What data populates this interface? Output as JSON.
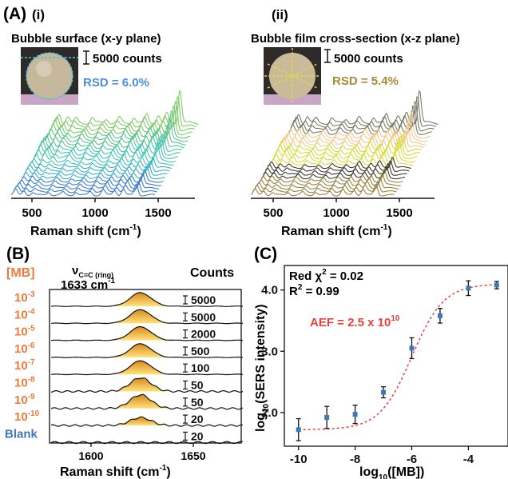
{
  "panel_A": {
    "label": "(A)",
    "left": {
      "sub": "(i)",
      "title": "Bubble surface (x-y plane)",
      "scale": "5000 counts",
      "rsd": "RSD = 6.0%",
      "rsd_color": "#4a90d9",
      "xlabel_main": "Raman shift (cm",
      "xlabel_sup": "-1",
      "xlabel_end": ")",
      "ticks": [
        "500",
        "1000",
        "1500"
      ],
      "colors": [
        "#3f7ecb",
        "#3db0c9",
        "#47c4b4",
        "#5bc28a",
        "#80cc6a"
      ]
    },
    "right": {
      "sub": "(ii)",
      "title": "Bubble film cross-section (x-z plane)",
      "scale": "5000 counts",
      "rsd": "RSD = 5.4%",
      "rsd_color": "#a88a3a",
      "xlabel_main": "Raman shift (cm",
      "xlabel_sup": "-1",
      "xlabel_end": ")",
      "ticks": [
        "500",
        "1000",
        "1500"
      ],
      "colors": [
        "#9a8240",
        "#3a3a2e",
        "#d7dc3e",
        "#f2c98a",
        "#7a7a6a"
      ]
    }
  },
  "panel_B": {
    "label": "(B)",
    "conc_header": "[MB]",
    "counts_header": "Counts",
    "peak_nu": "ν",
    "peak_sub": "C=C (ring)",
    "peak_value": "1633 cm",
    "peak_sup": "-1",
    "xlabel_main": "Raman shift (cm",
    "xlabel_sup": "-1",
    "xlabel_end": ")",
    "ticks": [
      "1600",
      "1650"
    ],
    "conc_color": "#f07a3a",
    "blank_color": "#3f78b8",
    "rows": [
      {
        "base": "10",
        "exp": "-3",
        "counts": "5000"
      },
      {
        "base": "10",
        "exp": "-4",
        "counts": "5000"
      },
      {
        "base": "10",
        "exp": "-5",
        "counts": "2000"
      },
      {
        "base": "10",
        "exp": "-6",
        "counts": "500"
      },
      {
        "base": "10",
        "exp": "-7",
        "counts": "100"
      },
      {
        "base": "10",
        "exp": "-8",
        "counts": "50"
      },
      {
        "base": "10",
        "exp": "-9",
        "counts": "50"
      },
      {
        "base": "10",
        "exp": "-10",
        "counts": "20"
      },
      {
        "base": "Blank",
        "exp": "",
        "counts": "20"
      }
    ]
  },
  "chart_data": {
    "type": "scatter",
    "label": "(C)",
    "x": [
      -10,
      -9,
      -8,
      -7,
      -6,
      -5,
      -4,
      -3
    ],
    "y": [
      1.72,
      1.92,
      1.97,
      2.33,
      3.05,
      3.58,
      4.03,
      4.08
    ],
    "yerr": [
      0.18,
      0.18,
      0.15,
      0.09,
      0.17,
      0.12,
      0.12,
      0.06
    ],
    "xticks": [
      "-10",
      "-8",
      "-6",
      "-4"
    ],
    "yticks": [
      "2.0",
      "3.0",
      "4.0"
    ],
    "xlim": [
      -10.5,
      -2.6
    ],
    "ylim": [
      1.45,
      4.4
    ],
    "xlabel_pre": "log",
    "xlabel_sub": "10",
    "xlabel_post": "([MB])",
    "ylabel_pre": "log",
    "ylabel_sub": "10",
    "ylabel_post": "(SERS intensity)",
    "red_chi": "Red χ",
    "red_chi_sup": "2",
    "red_chi_val": " = 0.02",
    "r2": "R",
    "r2_sup": "2",
    "r2_val": " = 0.99",
    "aef_pre": "AEF = 2.5 x 10",
    "aef_sup": "10",
    "point_color": "#3f78b8",
    "fit_color": "#e8413c",
    "aef_color": "#e8413c",
    "fit": {
      "bottom": 1.72,
      "top": 4.1,
      "center": -6.0,
      "slope": 0.55
    }
  }
}
